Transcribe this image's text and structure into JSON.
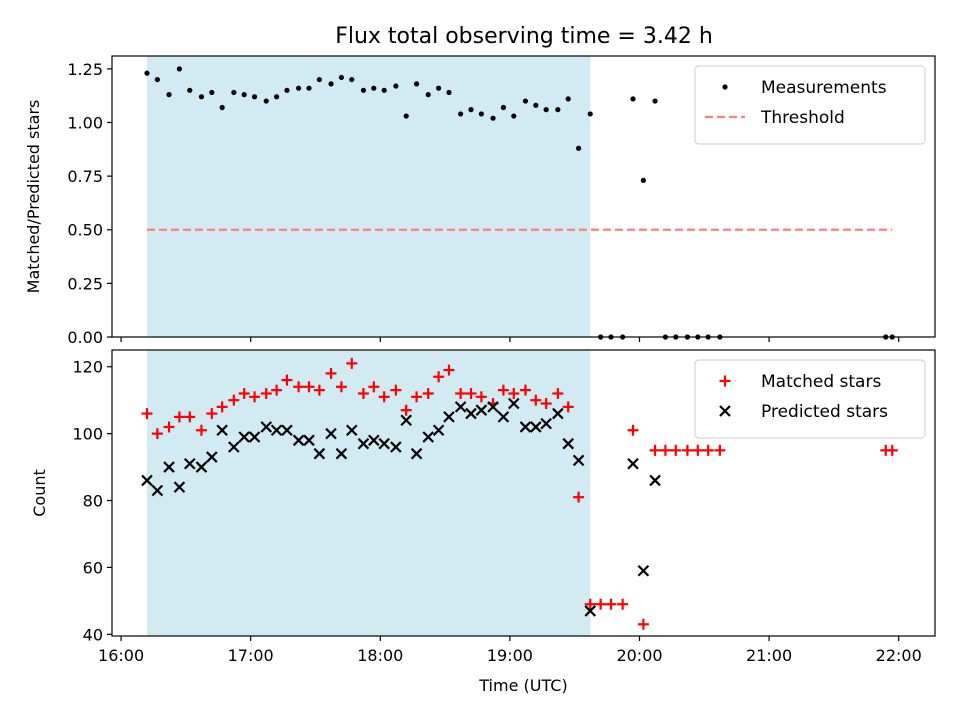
{
  "title": "Flux total observing time = 3.42 h",
  "colors": {
    "shade": "#add8e6",
    "threshold": "#ff7f7f",
    "matched": "#ff0000",
    "predicted": "#000000",
    "measurements": "#000000"
  },
  "chart_data": [
    {
      "type": "scatter",
      "ylabel": "Matched/Predicted stars",
      "xlabel": "",
      "x_unit": "time of day (hours, UTC)",
      "xlim": [
        15.93,
        22.28
      ],
      "ylim": [
        0,
        1.31
      ],
      "yticks": [
        0,
        0.25,
        0.5,
        0.75,
        1.0,
        1.25
      ],
      "yticklabels": [
        "0.00",
        "0.25",
        "0.50",
        "0.75",
        "1.00",
        "1.25"
      ],
      "xticks": [
        16,
        17,
        18,
        19,
        20,
        21,
        22
      ],
      "shaded_span": [
        16.2,
        19.62
      ],
      "legend": "top-right",
      "grid": false,
      "series": [
        {
          "name": "Measurements",
          "marker": "dot",
          "x": [
            16.2,
            16.28,
            16.37,
            16.45,
            16.53,
            16.62,
            16.7,
            16.78,
            16.87,
            16.95,
            17.03,
            17.12,
            17.2,
            17.28,
            17.37,
            17.45,
            17.53,
            17.62,
            17.7,
            17.78,
            17.87,
            17.95,
            18.03,
            18.12,
            18.2,
            18.28,
            18.37,
            18.45,
            18.53,
            18.62,
            18.7,
            18.78,
            18.87,
            18.95,
            19.03,
            19.12,
            19.2,
            19.28,
            19.37,
            19.45,
            19.53,
            19.62,
            19.7,
            19.78,
            19.87,
            19.95,
            20.03,
            20.12,
            20.2,
            20.28,
            20.37,
            20.45,
            20.53,
            20.62,
            21.9,
            21.95
          ],
          "y": [
            1.23,
            1.2,
            1.13,
            1.25,
            1.15,
            1.12,
            1.14,
            1.07,
            1.14,
            1.13,
            1.12,
            1.1,
            1.12,
            1.15,
            1.16,
            1.16,
            1.2,
            1.18,
            1.21,
            1.2,
            1.15,
            1.16,
            1.15,
            1.17,
            1.03,
            1.18,
            1.13,
            1.16,
            1.14,
            1.04,
            1.06,
            1.04,
            1.02,
            1.07,
            1.03,
            1.1,
            1.08,
            1.06,
            1.06,
            1.11,
            0.88,
            1.04,
            0.0,
            0.0,
            0.0,
            1.11,
            0.73,
            1.1,
            0.0,
            0.0,
            0.0,
            0.0,
            0.0,
            0.0,
            0.0,
            0.0
          ]
        },
        {
          "name": "Threshold",
          "style": "dashed-line",
          "x": [
            16.2,
            21.95
          ],
          "y": [
            0.5,
            0.5
          ]
        }
      ]
    },
    {
      "type": "scatter",
      "ylabel": "Count",
      "xlabel": "Time (UTC)",
      "x_unit": "time of day (hours, UTC)",
      "xlim": [
        15.93,
        22.28
      ],
      "ylim": [
        39.5,
        125
      ],
      "yticks": [
        40,
        60,
        80,
        100,
        120
      ],
      "yticklabels": [
        "40",
        "60",
        "80",
        "100",
        "120"
      ],
      "xticks": [
        16,
        17,
        18,
        19,
        20,
        21,
        22
      ],
      "xticklabels": [
        "16:00",
        "17:00",
        "18:00",
        "19:00",
        "20:00",
        "21:00",
        "22:00"
      ],
      "shaded_span": [
        16.2,
        19.62
      ],
      "legend": "top-right",
      "grid": false,
      "series": [
        {
          "name": "Matched stars",
          "marker": "plus",
          "x": [
            16.2,
            16.28,
            16.37,
            16.45,
            16.53,
            16.62,
            16.7,
            16.78,
            16.87,
            16.95,
            17.03,
            17.12,
            17.2,
            17.28,
            17.37,
            17.45,
            17.53,
            17.62,
            17.7,
            17.78,
            17.87,
            17.95,
            18.03,
            18.12,
            18.2,
            18.28,
            18.37,
            18.45,
            18.53,
            18.62,
            18.7,
            18.78,
            18.87,
            18.95,
            19.03,
            19.12,
            19.2,
            19.28,
            19.37,
            19.45,
            19.53,
            19.62,
            19.7,
            19.78,
            19.87,
            19.95,
            20.03,
            20.12,
            20.2,
            20.28,
            20.37,
            20.45,
            20.53,
            20.62,
            21.9,
            21.95
          ],
          "y": [
            106,
            100,
            102,
            105,
            105,
            101,
            106,
            108,
            110,
            112,
            111,
            112,
            113,
            116,
            114,
            114,
            113,
            118,
            114,
            121,
            112,
            114,
            111,
            113,
            107,
            111,
            112,
            117,
            119,
            112,
            112,
            111,
            109,
            113,
            112,
            113,
            110,
            109,
            112,
            108,
            81,
            49,
            49,
            49,
            49,
            101,
            43,
            95,
            95,
            95,
            95,
            95,
            95,
            95,
            95,
            95
          ]
        },
        {
          "name": "Predicted stars",
          "marker": "x",
          "x": [
            16.2,
            16.28,
            16.37,
            16.45,
            16.53,
            16.62,
            16.7,
            16.78,
            16.87,
            16.95,
            17.03,
            17.12,
            17.2,
            17.28,
            17.37,
            17.45,
            17.53,
            17.62,
            17.7,
            17.78,
            17.87,
            17.95,
            18.03,
            18.12,
            18.2,
            18.28,
            18.37,
            18.45,
            18.53,
            18.62,
            18.7,
            18.78,
            18.87,
            18.95,
            19.03,
            19.12,
            19.2,
            19.28,
            19.37,
            19.45,
            19.53,
            19.62,
            19.95,
            20.03,
            20.12
          ],
          "y": [
            86,
            83,
            90,
            84,
            91,
            90,
            93,
            101,
            96,
            99,
            99,
            102,
            101,
            101,
            98,
            98,
            94,
            100,
            94,
            101,
            97,
            98,
            97,
            96,
            104,
            94,
            99,
            101,
            105,
            108,
            106,
            107,
            108,
            105,
            109,
            102,
            102,
            103,
            106,
            97,
            92,
            47,
            91,
            59,
            86
          ]
        }
      ]
    }
  ]
}
